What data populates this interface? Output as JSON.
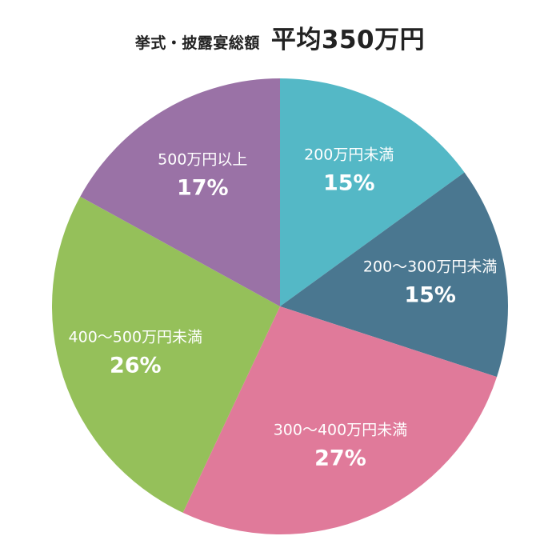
{
  "title": {
    "label": "挙式・披露宴総額",
    "average": "平均350万円"
  },
  "chart_data": {
    "type": "pie",
    "start_angle_deg": 0,
    "direction": "clockwise",
    "slices": [
      {
        "category": "200万円未満",
        "value": 15,
        "display": "15%",
        "color": "#54b8c6"
      },
      {
        "category": "200〜300万円未満",
        "value": 15,
        "display": "15%",
        "color": "#4a7790"
      },
      {
        "category": "300〜400万円未満",
        "value": 27,
        "display": "27%",
        "color": "#e07a9a"
      },
      {
        "category": "400〜500万円未満",
        "value": 26,
        "display": "26%",
        "color": "#95c05a"
      },
      {
        "category": "500万円以上",
        "value": 17,
        "display": "17%",
        "color": "#9a72a6"
      }
    ]
  }
}
